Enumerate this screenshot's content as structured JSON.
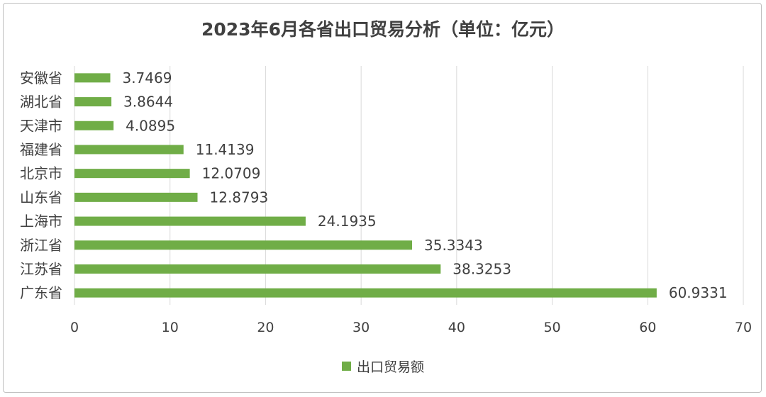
{
  "chart_data": {
    "type": "bar",
    "orientation": "horizontal",
    "title": "2023年6月各省出口贸易分析（单位：亿元）",
    "categories": [
      "安徽省",
      "湖北省",
      "天津市",
      "福建省",
      "北京市",
      "山东省",
      "上海市",
      "浙江省",
      "江苏省",
      "广东省"
    ],
    "series": [
      {
        "name": "出口贸易额",
        "color": "#70ad47",
        "values": [
          3.7469,
          3.8644,
          4.0895,
          11.4139,
          12.0709,
          12.8793,
          24.1935,
          35.3343,
          38.3253,
          60.9331
        ],
        "labels": [
          "3.7469",
          "3.8644",
          "4.0895",
          "11.4139",
          "12.0709",
          "12.8793",
          "24.1935",
          "35.3343",
          "38.3253",
          "60.9331"
        ]
      }
    ],
    "xlim": [
      0,
      70
    ],
    "xticks": [
      "0",
      "10",
      "20",
      "30",
      "40",
      "50",
      "60",
      "70"
    ],
    "grid": true,
    "legend_position": "bottom"
  }
}
